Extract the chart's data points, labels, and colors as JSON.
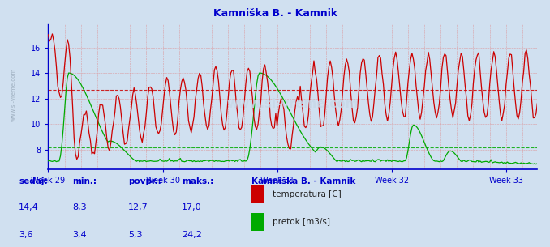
{
  "title": "Kamniška B. - Kamnik",
  "title_color": "#0000cc",
  "bg_color": "#d0e0f0",
  "temp_color": "#cc0000",
  "flow_color": "#00aa00",
  "axis_color": "#0000cc",
  "week_labels": [
    "Week 29",
    "Week 30",
    "Week 31",
    "Week 32",
    "Week 33"
  ],
  "yticks": [
    8,
    10,
    12,
    14,
    16
  ],
  "ylim": [
    6.5,
    17.8
  ],
  "temp_avg": 12.7,
  "flow_avg": 5.3,
  "flow_max": 24.2,
  "watermark": "www.si-vreme.com",
  "legend_title": "Kamniška B. - Kamnik",
  "legend_items": [
    {
      "label": "temperatura [C]",
      "color": "#cc0000"
    },
    {
      "label": "pretok [m3/s]",
      "color": "#00aa00"
    }
  ],
  "stats": {
    "headers": [
      "sedaj:",
      "min.:",
      "povpr.:",
      "maks.:"
    ],
    "temp": [
      "14,4",
      "8,3",
      "12,7",
      "17,0"
    ],
    "flow": [
      "3,6",
      "3,4",
      "5,3",
      "24,2"
    ]
  },
  "n_points": 360,
  "week_positions": [
    0,
    84,
    168,
    252,
    336
  ],
  "dpi": 100
}
